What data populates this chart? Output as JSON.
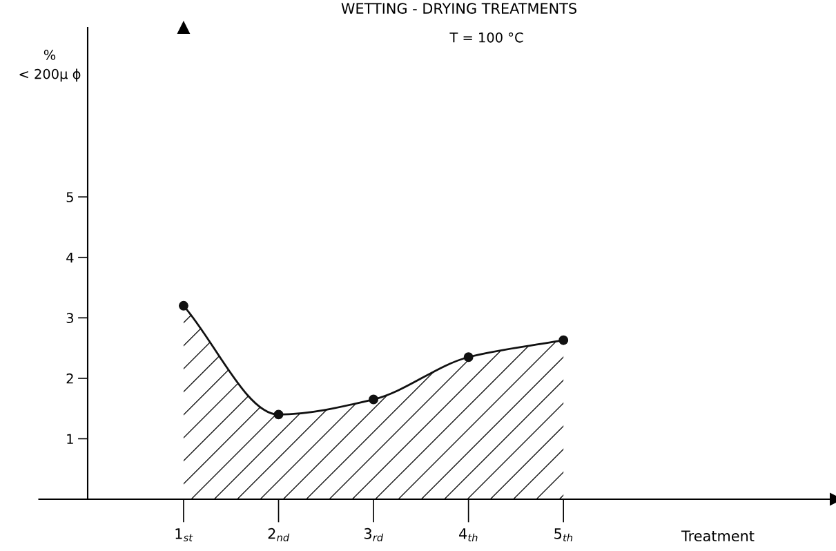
{
  "chart_data": {
    "type": "area",
    "title": "WETTING - DRYING TREATMENTS",
    "subtitle": "T = 100 °C",
    "xlabel": "Treatment",
    "ylabel": "%\n< 200µ ϕ",
    "categories": [
      "1$_{st}$",
      "2$_{nd}$",
      "3$_{rd}$",
      "4$_{th}$",
      "5$_{th}$"
    ],
    "series": [
      {
        "color": "#111111",
        "values": [
          3.2,
          1.4,
          1.65,
          2.35,
          2.63
        ]
      }
    ],
    "ylim": [
      0,
      7.8
    ],
    "yticks": [
      1,
      2,
      3,
      4,
      5
    ],
    "marker": "circle",
    "line_style": "solid",
    "grid": false,
    "legend": false
  }
}
